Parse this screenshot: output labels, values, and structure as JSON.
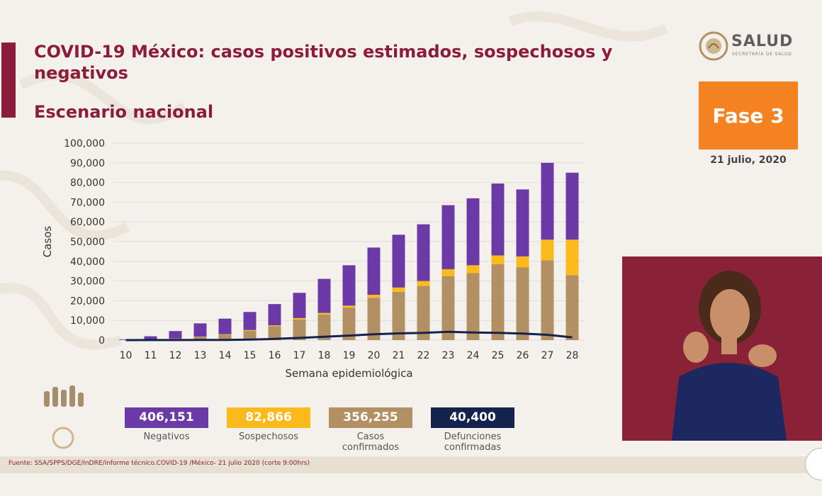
{
  "header": {
    "title": "COVID-19 México: casos positivos estimados, sospechosos y negativos",
    "subtitle": "Escenario nacional"
  },
  "logo": {
    "name": "SALUD",
    "tagline": "SECRETARÍA DE SALUD"
  },
  "phase": {
    "label": "Fase 3",
    "date": "21 julio, 2020",
    "color": "#f58220"
  },
  "chart_data": {
    "type": "bar",
    "stacked": true,
    "title": "",
    "xlabel": "Semana epidemiológica",
    "ylabel": "Casos",
    "ylim": [
      0,
      100000
    ],
    "yticks": [
      0,
      10000,
      20000,
      30000,
      40000,
      50000,
      60000,
      70000,
      80000,
      90000,
      100000
    ],
    "ytick_labels": [
      "0",
      "10,000",
      "20,000",
      "30,000",
      "40,000",
      "50,000",
      "60,000",
      "70,000",
      "80,000",
      "90,000",
      "100,000"
    ],
    "grid": true,
    "categories": [
      "10",
      "11",
      "12",
      "13",
      "14",
      "15",
      "16",
      "17",
      "18",
      "19",
      "20",
      "21",
      "22",
      "23",
      "24",
      "25",
      "26",
      "27",
      "28"
    ],
    "series": [
      {
        "name": "Casos confirmados",
        "color": "#b39063",
        "values": [
          100,
          300,
          700,
          1600,
          2700,
          4700,
          7000,
          10500,
          13000,
          16500,
          21500,
          24500,
          27500,
          32500,
          34000,
          38500,
          37000,
          40500,
          33000
        ]
      },
      {
        "name": "Sospechosos",
        "color": "#fbba1c",
        "values": [
          20,
          50,
          100,
          200,
          300,
          400,
          500,
          700,
          800,
          1000,
          1500,
          2200,
          2500,
          3500,
          4000,
          4500,
          5500,
          10500,
          18000
        ]
      },
      {
        "name": "Negativos",
        "color": "#6b3aa6",
        "values": [
          300,
          1600,
          3800,
          6700,
          7900,
          9200,
          10800,
          12800,
          17300,
          20500,
          24000,
          26800,
          28800,
          32500,
          34000,
          36500,
          34000,
          39000,
          34000
        ]
      }
    ],
    "line_series": {
      "name": "Defunciones confirmadas",
      "color": "#14224e",
      "values": [
        10,
        20,
        30,
        60,
        120,
        300,
        600,
        1100,
        1700,
        2300,
        3000,
        3400,
        3700,
        4200,
        3900,
        3700,
        3300,
        2700,
        1400
      ]
    }
  },
  "stats": [
    {
      "value": "406,151",
      "label": "Negativos",
      "color": "#6b3aa6",
      "value_color": "#ffffff"
    },
    {
      "value": "82,866",
      "label": "Sospechosos",
      "color": "#fbba1c",
      "value_color": "#ffffff"
    },
    {
      "value": "356,255",
      "label": "Casos confirmados",
      "color": "#b39063",
      "value_color": "#ffffff"
    },
    {
      "value": "40,400",
      "label": "Defunciones confirmadas",
      "color": "#14224e",
      "value_color": "#ffffff"
    }
  ],
  "footer": {
    "source": "Fuente: SSA/SPPS/DGE/InDRE/Informe técnico.COVID-19 /México- 21 julio 2020 (corte 9:00hrs)"
  }
}
